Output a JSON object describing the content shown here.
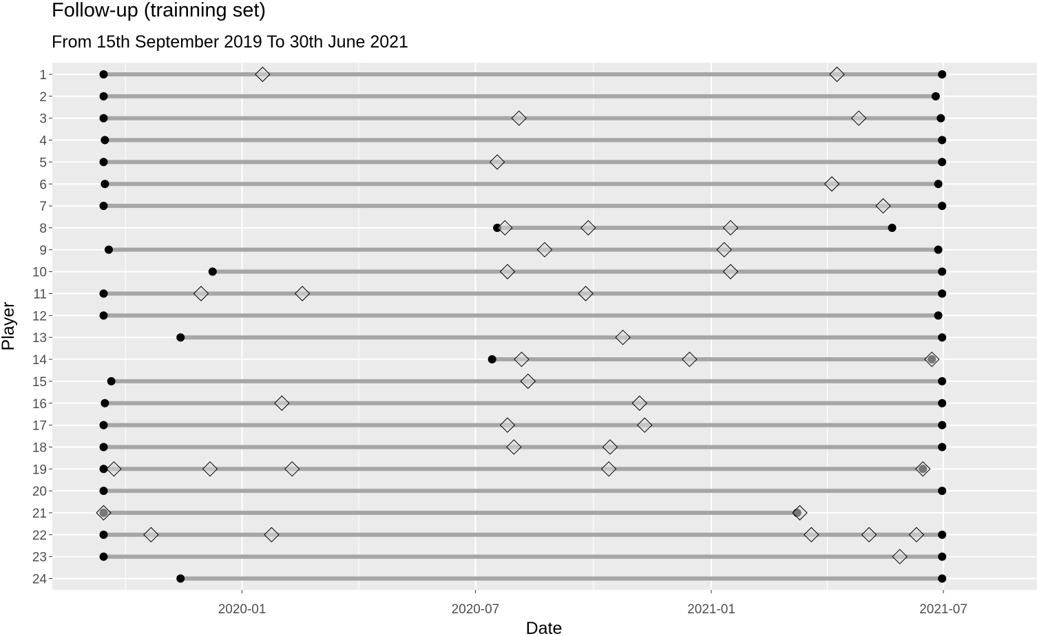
{
  "chart_data": {
    "type": "scatter",
    "title": "Follow-up (trainning set)",
    "subtitle": "From 15th September 2019 To 30th June 2021",
    "xlabel": "Date",
    "ylabel": "Player",
    "x_scale": "date",
    "xlim": [
      "2019-08-06",
      "2021-09-12"
    ],
    "x_ticks": [
      "2020-01-01",
      "2020-07-01",
      "2021-01-01",
      "2021-07-01"
    ],
    "x_tick_labels": [
      "2020-01",
      "2020-07",
      "2021-01",
      "2021-07"
    ],
    "y_categories": [
      "1",
      "2",
      "3",
      "4",
      "5",
      "6",
      "7",
      "8",
      "9",
      "10",
      "11",
      "12",
      "13",
      "14",
      "15",
      "16",
      "17",
      "18",
      "19",
      "20",
      "21",
      "22",
      "23",
      "24"
    ],
    "grid": true,
    "legend": "none",
    "colors": {
      "panel_background": "#ebebeb",
      "grid_line": "#ffffff",
      "segment": "#a6a6a6",
      "endpoint": "#000000",
      "event_marker_fill": "#d9d9d9",
      "event_marker_stroke": "#000000"
    },
    "players": [
      {
        "player": "1",
        "start": "2019-09-15",
        "end": "2021-06-30",
        "events": [
          "2020-01-17",
          "2021-04-09"
        ]
      },
      {
        "player": "2",
        "start": "2019-09-15",
        "end": "2021-06-25",
        "events": []
      },
      {
        "player": "3",
        "start": "2019-09-15",
        "end": "2021-06-29",
        "events": [
          "2020-08-04",
          "2021-04-26"
        ]
      },
      {
        "player": "4",
        "start": "2019-09-16",
        "end": "2021-06-30",
        "events": []
      },
      {
        "player": "5",
        "start": "2019-09-15",
        "end": "2021-06-30",
        "events": [
          "2020-07-18"
        ]
      },
      {
        "player": "6",
        "start": "2019-09-16",
        "end": "2021-06-27",
        "events": [
          "2021-04-05"
        ]
      },
      {
        "player": "7",
        "start": "2019-09-15",
        "end": "2021-06-30",
        "events": [
          "2021-05-15"
        ]
      },
      {
        "player": "8",
        "start": "2020-07-18",
        "end": "2021-05-22",
        "events": [
          "2020-07-24",
          "2020-09-27",
          "2021-01-16"
        ]
      },
      {
        "player": "9",
        "start": "2019-09-19",
        "end": "2021-06-27",
        "events": [
          "2020-08-24",
          "2021-01-11"
        ]
      },
      {
        "player": "10",
        "start": "2019-12-09",
        "end": "2021-06-30",
        "events": [
          "2020-07-26",
          "2021-01-16"
        ]
      },
      {
        "player": "11",
        "start": "2019-09-15",
        "end": "2021-06-30",
        "events": [
          "2019-11-30",
          "2020-02-17",
          "2020-09-25"
        ]
      },
      {
        "player": "12",
        "start": "2019-09-15",
        "end": "2021-06-27",
        "events": []
      },
      {
        "player": "13",
        "start": "2019-11-14",
        "end": "2021-06-30",
        "events": [
          "2020-10-24"
        ]
      },
      {
        "player": "14",
        "start": "2020-07-14",
        "end": "2021-06-22",
        "events": [
          "2020-08-06",
          "2020-12-15",
          "2021-06-22"
        ]
      },
      {
        "player": "15",
        "start": "2019-09-21",
        "end": "2021-06-30",
        "events": [
          "2020-08-11"
        ]
      },
      {
        "player": "16",
        "start": "2019-09-16",
        "end": "2021-06-30",
        "events": [
          "2020-02-01",
          "2020-11-06"
        ]
      },
      {
        "player": "17",
        "start": "2019-09-15",
        "end": "2021-06-30",
        "events": [
          "2020-07-26",
          "2020-11-10"
        ]
      },
      {
        "player": "18",
        "start": "2019-09-15",
        "end": "2021-06-30",
        "events": [
          "2020-07-31",
          "2020-10-14"
        ]
      },
      {
        "player": "19",
        "start": "2019-09-15",
        "end": "2021-06-15",
        "events": [
          "2019-09-23",
          "2019-12-07",
          "2020-02-09",
          "2020-10-13",
          "2021-06-15"
        ]
      },
      {
        "player": "20",
        "start": "2019-09-15",
        "end": "2021-06-30",
        "events": []
      },
      {
        "player": "21",
        "start": "2019-09-15",
        "end": "2021-03-09",
        "events": [
          "2019-09-15",
          "2021-03-11"
        ]
      },
      {
        "player": "22",
        "start": "2019-09-15",
        "end": "2021-06-30",
        "events": [
          "2019-10-22",
          "2020-01-24",
          "2021-03-20",
          "2021-05-04",
          "2021-06-10"
        ]
      },
      {
        "player": "23",
        "start": "2019-09-15",
        "end": "2021-06-30",
        "events": [
          "2021-05-28"
        ]
      },
      {
        "player": "24",
        "start": "2019-11-14",
        "end": "2021-06-30",
        "events": []
      }
    ]
  }
}
